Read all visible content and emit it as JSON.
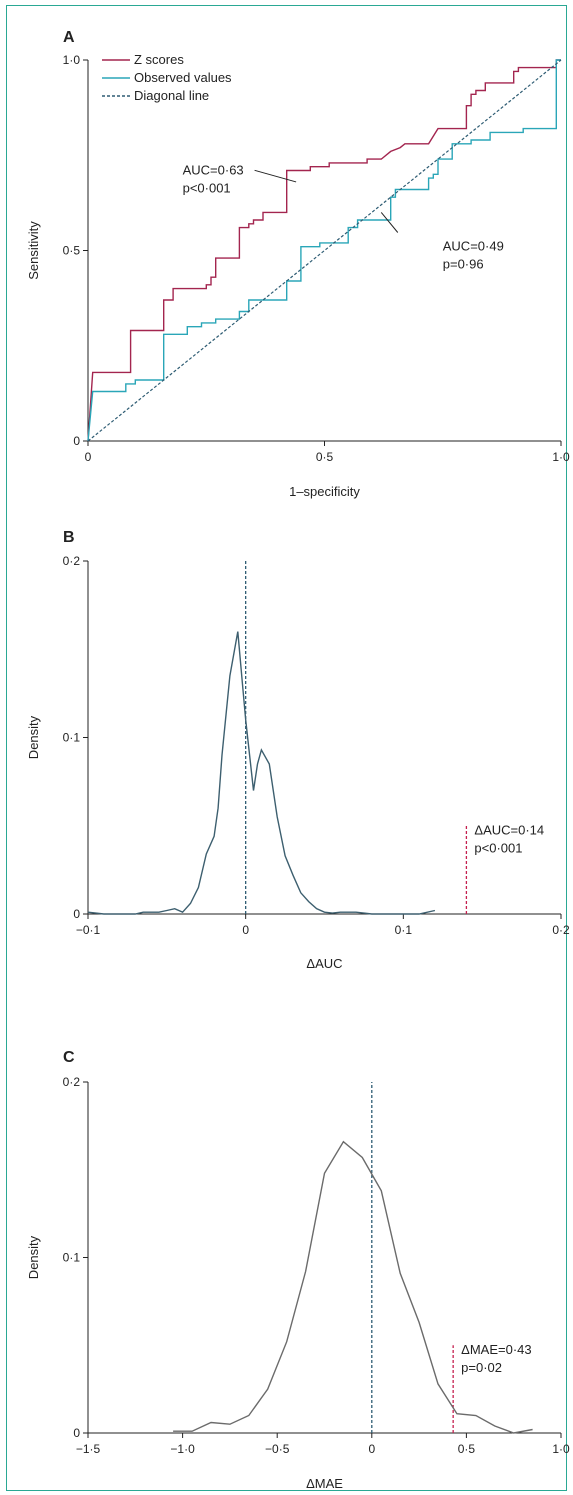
{
  "chart_data": [
    {
      "panel": "A",
      "type": "line",
      "xlabel": "1–specificity",
      "ylabel": "Sensitivity",
      "xlim": [
        0,
        1
      ],
      "ylim": [
        0,
        1
      ],
      "xticks": [
        "0",
        "0·5",
        "1·0"
      ],
      "yticks": [
        "0",
        "0·5",
        "1·0"
      ],
      "legend_position": "top-left",
      "series": [
        {
          "name": "Z scores",
          "color": "#a3254f",
          "style": "solid",
          "x": [
            0,
            0.01,
            0.01,
            0.09,
            0.09,
            0.16,
            0.16,
            0.18,
            0.18,
            0.25,
            0.25,
            0.26,
            0.26,
            0.27,
            0.27,
            0.32,
            0.32,
            0.34,
            0.34,
            0.35,
            0.35,
            0.37,
            0.37,
            0.42,
            0.42,
            0.45,
            0.45,
            0.47,
            0.47,
            0.5,
            0.5,
            0.51,
            0.51,
            0.59,
            0.59,
            0.62,
            0.62,
            0.64,
            0.64,
            0.66,
            0.66,
            0.67,
            0.67,
            0.72,
            0.72,
            0.74,
            0.74,
            0.8,
            0.8,
            0.81,
            0.81,
            0.82,
            0.82,
            0.84,
            0.84,
            0.87,
            0.87,
            0.9,
            0.9,
            0.91,
            0.91,
            0.92,
            0.92,
            0.99,
            0.99,
            1.0
          ],
          "y": [
            0,
            0.18,
            0.18,
            0.18,
            0.29,
            0.29,
            0.37,
            0.37,
            0.4,
            0.4,
            0.41,
            0.41,
            0.43,
            0.43,
            0.48,
            0.48,
            0.56,
            0.56,
            0.57,
            0.57,
            0.58,
            0.58,
            0.6,
            0.6,
            0.71,
            0.71,
            0.71,
            0.71,
            0.72,
            0.72,
            0.72,
            0.72,
            0.73,
            0.73,
            0.74,
            0.74,
            0.74,
            0.76,
            0.76,
            0.77,
            0.77,
            0.78,
            0.78,
            0.78,
            0.78,
            0.82,
            0.82,
            0.82,
            0.88,
            0.88,
            0.91,
            0.91,
            0.92,
            0.92,
            0.94,
            0.94,
            0.94,
            0.94,
            0.97,
            0.97,
            0.98,
            0.98,
            0.98,
            0.98,
            1.0,
            1.0
          ]
        },
        {
          "name": "Observed values",
          "color": "#2aa6b8",
          "style": "solid",
          "x": [
            0,
            0.01,
            0.01,
            0.08,
            0.08,
            0.1,
            0.1,
            0.16,
            0.16,
            0.18,
            0.18,
            0.21,
            0.21,
            0.22,
            0.22,
            0.24,
            0.24,
            0.27,
            0.27,
            0.31,
            0.31,
            0.32,
            0.32,
            0.34,
            0.34,
            0.35,
            0.35,
            0.42,
            0.42,
            0.45,
            0.45,
            0.47,
            0.47,
            0.49,
            0.49,
            0.5,
            0.5,
            0.55,
            0.55,
            0.57,
            0.57,
            0.59,
            0.59,
            0.64,
            0.64,
            0.65,
            0.65,
            0.7,
            0.7,
            0.72,
            0.72,
            0.73,
            0.73,
            0.74,
            0.74,
            0.77,
            0.77,
            0.8,
            0.8,
            0.81,
            0.81,
            0.83,
            0.83,
            0.85,
            0.85,
            0.92,
            0.92,
            0.94,
            0.94,
            0.99,
            0.99,
            1.0
          ],
          "y": [
            0,
            0.13,
            0.13,
            0.13,
            0.15,
            0.15,
            0.16,
            0.16,
            0.28,
            0.28,
            0.28,
            0.28,
            0.3,
            0.3,
            0.3,
            0.3,
            0.31,
            0.31,
            0.32,
            0.32,
            0.32,
            0.32,
            0.34,
            0.34,
            0.37,
            0.37,
            0.37,
            0.37,
            0.42,
            0.42,
            0.51,
            0.51,
            0.51,
            0.51,
            0.52,
            0.52,
            0.52,
            0.52,
            0.56,
            0.56,
            0.58,
            0.58,
            0.58,
            0.58,
            0.64,
            0.64,
            0.66,
            0.66,
            0.66,
            0.66,
            0.69,
            0.69,
            0.7,
            0.7,
            0.74,
            0.74,
            0.78,
            0.78,
            0.78,
            0.78,
            0.79,
            0.79,
            0.79,
            0.79,
            0.81,
            0.81,
            0.82,
            0.82,
            0.82,
            0.82,
            1.0,
            1.0
          ]
        },
        {
          "name": "Diagonal line",
          "color": "#2e5c73",
          "style": "dashed",
          "x": [
            0,
            1
          ],
          "y": [
            0,
            1
          ]
        }
      ],
      "annotations": [
        {
          "lines": [
            "AUC=0·63",
            "p<0·001"
          ],
          "target_series": "Z scores",
          "target": [
            0.44,
            0.68
          ],
          "label": [
            0.2,
            0.7
          ]
        },
        {
          "lines": [
            "AUC=0·49",
            "p=0·96"
          ],
          "target_series": "Observed values",
          "target": [
            0.62,
            0.6
          ],
          "label": [
            0.75,
            0.5
          ]
        }
      ]
    },
    {
      "panel": "B",
      "type": "line",
      "xlabel": "ΔAUC",
      "ylabel": "Density",
      "xlim": [
        -0.1,
        0.2
      ],
      "ylim": [
        0,
        0.2
      ],
      "xticks": [
        "−0·1",
        "0",
        "0·1",
        "0·2"
      ],
      "yticks": [
        "0",
        "0·1",
        "0·2"
      ],
      "series": [
        {
          "name": "",
          "color": "#3d5f6f",
          "style": "solid",
          "x": [
            -0.1,
            -0.09,
            -0.08,
            -0.07,
            -0.065,
            -0.06,
            -0.055,
            -0.05,
            -0.045,
            -0.04,
            -0.035,
            -0.03,
            -0.025,
            -0.02,
            -0.0175,
            -0.015,
            -0.01,
            -0.005,
            -0.002,
            0,
            0.005,
            0.0075,
            0.01,
            0.015,
            0.02,
            0.025,
            0.03,
            0.035,
            0.04,
            0.045,
            0.05,
            0.055,
            0.06,
            0.065,
            0.07,
            0.075,
            0.08,
            0.09,
            0.1,
            0.11,
            0.12
          ],
          "y": [
            0.001,
            0,
            0,
            0,
            0.001,
            0.001,
            0.001,
            0.002,
            0.003,
            0.001,
            0.006,
            0.015,
            0.034,
            0.044,
            0.06,
            0.09,
            0.135,
            0.16,
            0.13,
            0.11,
            0.07,
            0.085,
            0.093,
            0.085,
            0.055,
            0.033,
            0.022,
            0.012,
            0.007,
            0.003,
            0.001,
            0.0005,
            0.001,
            0.001,
            0.001,
            0.0005,
            0,
            0,
            0,
            0,
            0.002
          ]
        }
      ],
      "reference_lines": [
        {
          "x": 0,
          "color": "#2e5c73",
          "style": "dashed",
          "height": 0.2
        },
        {
          "x": 0.14,
          "color": "#c4204f",
          "style": "dashed",
          "height": 0.05
        }
      ],
      "annotations": [
        {
          "lines": [
            "ΔAUC=0·14",
            "p<0·001"
          ],
          "x": 0.14,
          "y": 0.045
        }
      ]
    },
    {
      "panel": "C",
      "type": "line",
      "xlabel": "ΔMAE",
      "ylabel": "Density",
      "xlim": [
        -1.5,
        1.0
      ],
      "ylim": [
        0,
        0.2
      ],
      "xticks": [
        "−1·5",
        "−1·0",
        "−0·5",
        "0",
        "0·5",
        "1·0"
      ],
      "yticks": [
        "0",
        "0·1",
        "0·2"
      ],
      "series": [
        {
          "name": "",
          "color": "#6b6b6b",
          "style": "solid",
          "x": [
            -1.05,
            -0.95,
            -0.85,
            -0.75,
            -0.65,
            -0.55,
            -0.45,
            -0.35,
            -0.25,
            -0.15,
            -0.05,
            0.05,
            0.15,
            0.25,
            0.35,
            0.45,
            0.55,
            0.65,
            0.75,
            0.85
          ],
          "y": [
            0.001,
            0.001,
            0.006,
            0.005,
            0.01,
            0.025,
            0.052,
            0.092,
            0.148,
            0.166,
            0.157,
            0.138,
            0.091,
            0.063,
            0.028,
            0.011,
            0.01,
            0.004,
            0,
            0.002
          ]
        }
      ],
      "reference_lines": [
        {
          "x": 0,
          "color": "#2e5c73",
          "style": "dashed",
          "height": 0.2
        },
        {
          "x": 0.43,
          "color": "#c4204f",
          "style": "dashed",
          "height": 0.05
        }
      ],
      "annotations": [
        {
          "lines": [
            "ΔMAE=0·43",
            "p=0·02"
          ],
          "x": 0.43,
          "y": 0.045
        }
      ]
    }
  ]
}
